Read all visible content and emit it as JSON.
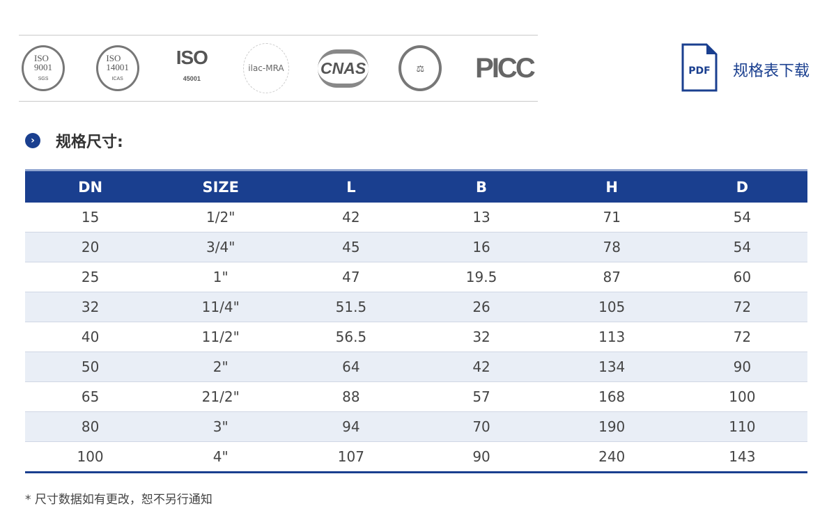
{
  "certifications": [
    "ISO 9001",
    "ISO 14001",
    "ISO 45001",
    "ilac-MRA",
    "CNAS",
    "National Health seal",
    "PICC"
  ],
  "download": {
    "icon_text": "PDF",
    "label": "规格表下载"
  },
  "section": {
    "title": "规格尺寸:"
  },
  "table": {
    "headers": [
      "DN",
      "SIZE",
      "L",
      "B",
      "H",
      "D"
    ],
    "rows": [
      [
        "15",
        "1/2\"",
        "42",
        "13",
        "71",
        "54"
      ],
      [
        "20",
        "3/4\"",
        "45",
        "16",
        "78",
        "54"
      ],
      [
        "25",
        "1\"",
        "47",
        "19.5",
        "87",
        "60"
      ],
      [
        "32",
        "11/4\"",
        "51.5",
        "26",
        "105",
        "72"
      ],
      [
        "40",
        "11/2\"",
        "56.5",
        "32",
        "113",
        "72"
      ],
      [
        "50",
        "2\"",
        "64",
        "42",
        "134",
        "90"
      ],
      [
        "65",
        "21/2\"",
        "88",
        "57",
        "168",
        "100"
      ],
      [
        "80",
        "3\"",
        "94",
        "70",
        "190",
        "110"
      ],
      [
        "100",
        "4\"",
        "107",
        "90",
        "240",
        "143"
      ]
    ]
  },
  "note": "* 尺寸数据如有更改，恕不另行通知",
  "colors": {
    "accent": "#1a3f8f",
    "row_alt": "#e9eef6"
  }
}
